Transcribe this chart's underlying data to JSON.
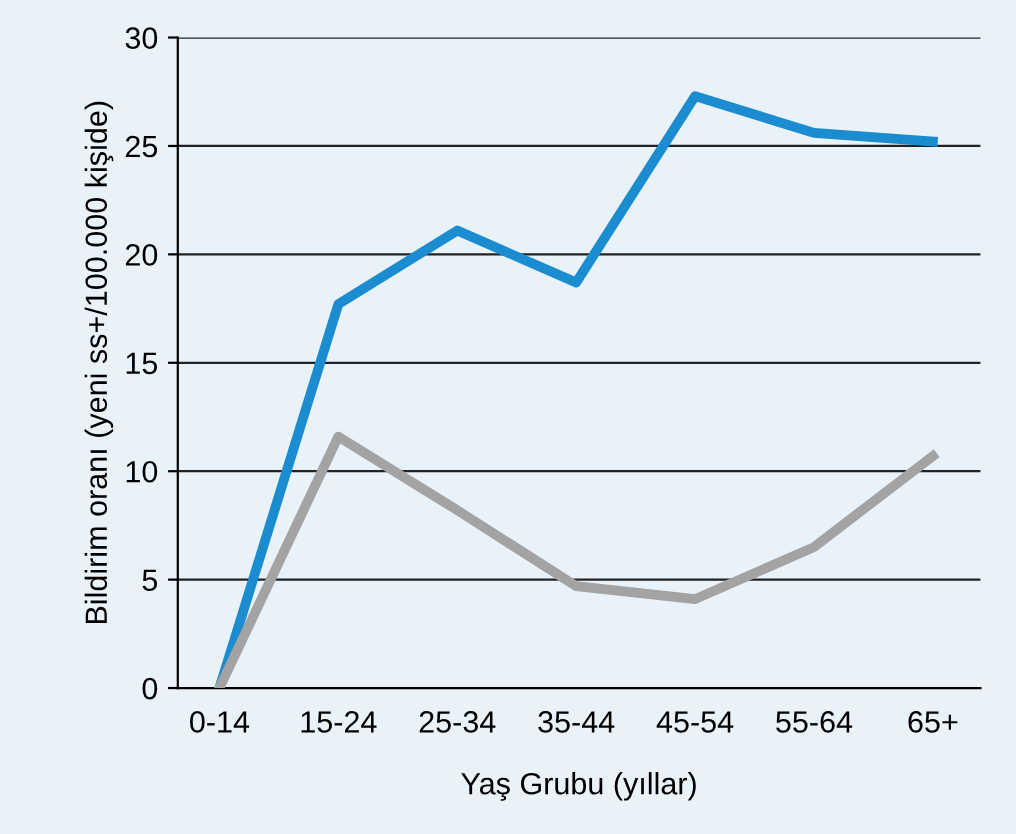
{
  "chart_data": {
    "type": "line",
    "xlabel": "Yaş Grubu (yıllar)",
    "ylabel": "Bildirim oranı (yeni ss+/100.000 kişide)",
    "categories": [
      "0-14",
      "15-24",
      "25-34",
      "35-44",
      "45-54",
      "55-64",
      "65+"
    ],
    "series": [
      {
        "color": "#1a8ccf",
        "values": [
          0,
          17.7,
          21.1,
          18.7,
          27.3,
          25.6,
          25.2
        ]
      },
      {
        "color": "#a3a3a3",
        "values": [
          0,
          11.6,
          8.2,
          4.7,
          4.1,
          6.5,
          10.7
        ]
      }
    ],
    "ylim": [
      0,
      30
    ],
    "yticks": [
      0,
      5,
      10,
      15,
      20,
      25,
      30
    ],
    "grid": "y",
    "marker": "none",
    "line_style": "solid"
  }
}
